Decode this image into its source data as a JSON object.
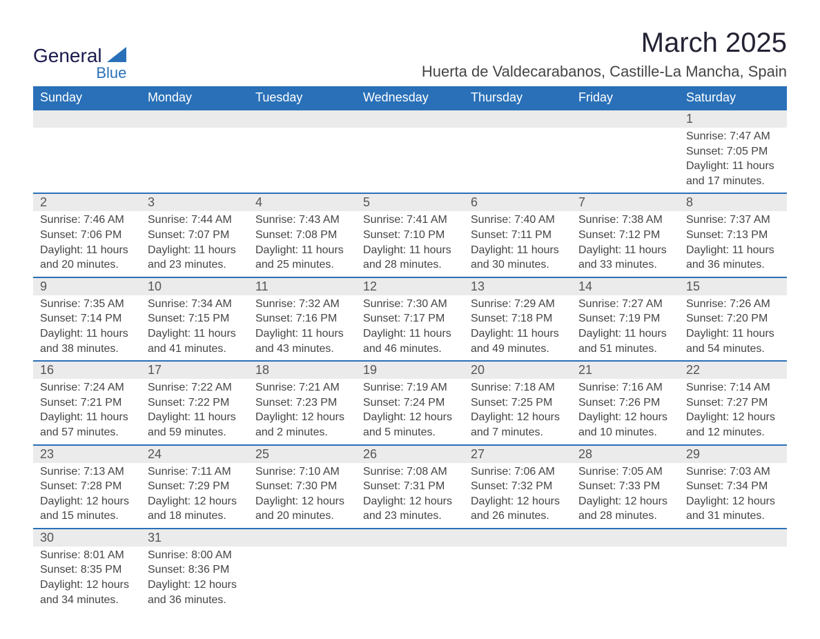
{
  "logo": {
    "text1": "General",
    "text2": "Blue",
    "icon_color": "#2970b8"
  },
  "title": {
    "month": "March 2025",
    "location": "Huerta de Valdecarabanos, Castille-La Mancha, Spain"
  },
  "colors": {
    "header_bg": "#2970b8",
    "header_text": "#ffffff",
    "daynum_bg": "#ebebeb",
    "border": "#2970b8",
    "body_text": "#444444"
  },
  "weekdays": [
    "Sunday",
    "Monday",
    "Tuesday",
    "Wednesday",
    "Thursday",
    "Friday",
    "Saturday"
  ],
  "weeks": [
    [
      null,
      null,
      null,
      null,
      null,
      null,
      {
        "n": "1",
        "sr": "Sunrise: 7:47 AM",
        "ss": "Sunset: 7:05 PM",
        "dl1": "Daylight: 11 hours",
        "dl2": "and 17 minutes."
      }
    ],
    [
      {
        "n": "2",
        "sr": "Sunrise: 7:46 AM",
        "ss": "Sunset: 7:06 PM",
        "dl1": "Daylight: 11 hours",
        "dl2": "and 20 minutes."
      },
      {
        "n": "3",
        "sr": "Sunrise: 7:44 AM",
        "ss": "Sunset: 7:07 PM",
        "dl1": "Daylight: 11 hours",
        "dl2": "and 23 minutes."
      },
      {
        "n": "4",
        "sr": "Sunrise: 7:43 AM",
        "ss": "Sunset: 7:08 PM",
        "dl1": "Daylight: 11 hours",
        "dl2": "and 25 minutes."
      },
      {
        "n": "5",
        "sr": "Sunrise: 7:41 AM",
        "ss": "Sunset: 7:10 PM",
        "dl1": "Daylight: 11 hours",
        "dl2": "and 28 minutes."
      },
      {
        "n": "6",
        "sr": "Sunrise: 7:40 AM",
        "ss": "Sunset: 7:11 PM",
        "dl1": "Daylight: 11 hours",
        "dl2": "and 30 minutes."
      },
      {
        "n": "7",
        "sr": "Sunrise: 7:38 AM",
        "ss": "Sunset: 7:12 PM",
        "dl1": "Daylight: 11 hours",
        "dl2": "and 33 minutes."
      },
      {
        "n": "8",
        "sr": "Sunrise: 7:37 AM",
        "ss": "Sunset: 7:13 PM",
        "dl1": "Daylight: 11 hours",
        "dl2": "and 36 minutes."
      }
    ],
    [
      {
        "n": "9",
        "sr": "Sunrise: 7:35 AM",
        "ss": "Sunset: 7:14 PM",
        "dl1": "Daylight: 11 hours",
        "dl2": "and 38 minutes."
      },
      {
        "n": "10",
        "sr": "Sunrise: 7:34 AM",
        "ss": "Sunset: 7:15 PM",
        "dl1": "Daylight: 11 hours",
        "dl2": "and 41 minutes."
      },
      {
        "n": "11",
        "sr": "Sunrise: 7:32 AM",
        "ss": "Sunset: 7:16 PM",
        "dl1": "Daylight: 11 hours",
        "dl2": "and 43 minutes."
      },
      {
        "n": "12",
        "sr": "Sunrise: 7:30 AM",
        "ss": "Sunset: 7:17 PM",
        "dl1": "Daylight: 11 hours",
        "dl2": "and 46 minutes."
      },
      {
        "n": "13",
        "sr": "Sunrise: 7:29 AM",
        "ss": "Sunset: 7:18 PM",
        "dl1": "Daylight: 11 hours",
        "dl2": "and 49 minutes."
      },
      {
        "n": "14",
        "sr": "Sunrise: 7:27 AM",
        "ss": "Sunset: 7:19 PM",
        "dl1": "Daylight: 11 hours",
        "dl2": "and 51 minutes."
      },
      {
        "n": "15",
        "sr": "Sunrise: 7:26 AM",
        "ss": "Sunset: 7:20 PM",
        "dl1": "Daylight: 11 hours",
        "dl2": "and 54 minutes."
      }
    ],
    [
      {
        "n": "16",
        "sr": "Sunrise: 7:24 AM",
        "ss": "Sunset: 7:21 PM",
        "dl1": "Daylight: 11 hours",
        "dl2": "and 57 minutes."
      },
      {
        "n": "17",
        "sr": "Sunrise: 7:22 AM",
        "ss": "Sunset: 7:22 PM",
        "dl1": "Daylight: 11 hours",
        "dl2": "and 59 minutes."
      },
      {
        "n": "18",
        "sr": "Sunrise: 7:21 AM",
        "ss": "Sunset: 7:23 PM",
        "dl1": "Daylight: 12 hours",
        "dl2": "and 2 minutes."
      },
      {
        "n": "19",
        "sr": "Sunrise: 7:19 AM",
        "ss": "Sunset: 7:24 PM",
        "dl1": "Daylight: 12 hours",
        "dl2": "and 5 minutes."
      },
      {
        "n": "20",
        "sr": "Sunrise: 7:18 AM",
        "ss": "Sunset: 7:25 PM",
        "dl1": "Daylight: 12 hours",
        "dl2": "and 7 minutes."
      },
      {
        "n": "21",
        "sr": "Sunrise: 7:16 AM",
        "ss": "Sunset: 7:26 PM",
        "dl1": "Daylight: 12 hours",
        "dl2": "and 10 minutes."
      },
      {
        "n": "22",
        "sr": "Sunrise: 7:14 AM",
        "ss": "Sunset: 7:27 PM",
        "dl1": "Daylight: 12 hours",
        "dl2": "and 12 minutes."
      }
    ],
    [
      {
        "n": "23",
        "sr": "Sunrise: 7:13 AM",
        "ss": "Sunset: 7:28 PM",
        "dl1": "Daylight: 12 hours",
        "dl2": "and 15 minutes."
      },
      {
        "n": "24",
        "sr": "Sunrise: 7:11 AM",
        "ss": "Sunset: 7:29 PM",
        "dl1": "Daylight: 12 hours",
        "dl2": "and 18 minutes."
      },
      {
        "n": "25",
        "sr": "Sunrise: 7:10 AM",
        "ss": "Sunset: 7:30 PM",
        "dl1": "Daylight: 12 hours",
        "dl2": "and 20 minutes."
      },
      {
        "n": "26",
        "sr": "Sunrise: 7:08 AM",
        "ss": "Sunset: 7:31 PM",
        "dl1": "Daylight: 12 hours",
        "dl2": "and 23 minutes."
      },
      {
        "n": "27",
        "sr": "Sunrise: 7:06 AM",
        "ss": "Sunset: 7:32 PM",
        "dl1": "Daylight: 12 hours",
        "dl2": "and 26 minutes."
      },
      {
        "n": "28",
        "sr": "Sunrise: 7:05 AM",
        "ss": "Sunset: 7:33 PM",
        "dl1": "Daylight: 12 hours",
        "dl2": "and 28 minutes."
      },
      {
        "n": "29",
        "sr": "Sunrise: 7:03 AM",
        "ss": "Sunset: 7:34 PM",
        "dl1": "Daylight: 12 hours",
        "dl2": "and 31 minutes."
      }
    ],
    [
      {
        "n": "30",
        "sr": "Sunrise: 8:01 AM",
        "ss": "Sunset: 8:35 PM",
        "dl1": "Daylight: 12 hours",
        "dl2": "and 34 minutes."
      },
      {
        "n": "31",
        "sr": "Sunrise: 8:00 AM",
        "ss": "Sunset: 8:36 PM",
        "dl1": "Daylight: 12 hours",
        "dl2": "and 36 minutes."
      },
      null,
      null,
      null,
      null,
      null
    ]
  ]
}
